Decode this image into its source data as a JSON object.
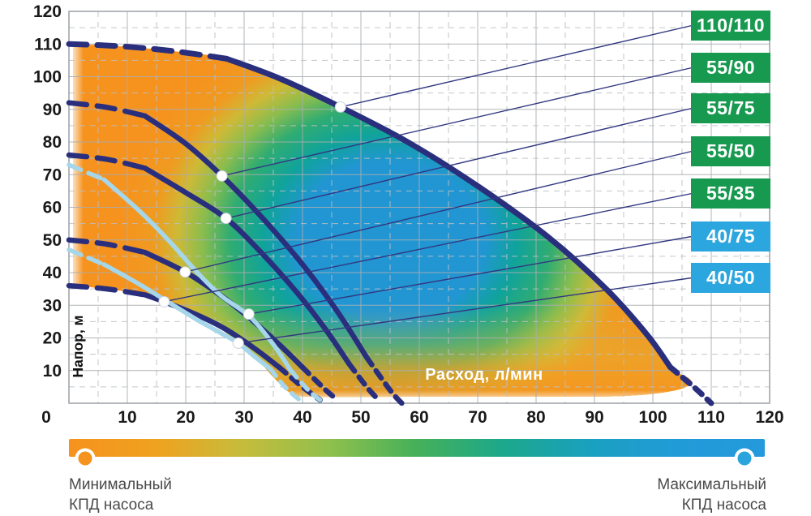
{
  "page": {
    "background": "#ffffff"
  },
  "chart_data": {
    "type": "line",
    "title": "",
    "xlabel": "Расход, л/мин",
    "ylabel": "Напор, м",
    "xlim": [
      0,
      120
    ],
    "ylim": [
      0,
      120
    ],
    "x_ticks": [
      0,
      10,
      20,
      30,
      40,
      50,
      60,
      70,
      80,
      90,
      100,
      110,
      120
    ],
    "y_ticks": [
      10,
      20,
      30,
      40,
      50,
      60,
      70,
      80,
      90,
      100,
      110,
      120
    ],
    "grid": {
      "solid_step": 10,
      "dashed_step": 5,
      "solid_color": "#a9adb1",
      "dashed_color": "#bcc0c4"
    },
    "series": [
      {
        "name": "110/110",
        "color": "#2A2F7D",
        "width": 7,
        "lead": 27,
        "tail": 103,
        "points": [
          [
            0,
            110
          ],
          [
            9,
            109.3
          ],
          [
            18,
            107.8
          ],
          [
            27,
            105.5
          ],
          [
            36,
            99.5
          ],
          [
            46.5,
            90.7
          ],
          [
            58,
            80
          ],
          [
            70,
            66.5
          ],
          [
            82,
            51
          ],
          [
            92,
            35
          ],
          [
            99,
            21
          ],
          [
            103,
            11
          ],
          [
            107,
            5
          ],
          [
            110,
            0
          ]
        ],
        "dot": [
          46.5,
          90.7
        ]
      },
      {
        "name": "55/90",
        "color": "#2A2F7D",
        "width": 6.5,
        "lead": 13,
        "tail": 51,
        "points": [
          [
            0,
            92
          ],
          [
            6.5,
            90.6
          ],
          [
            13,
            88
          ],
          [
            20,
            79.5
          ],
          [
            26.2,
            69.6
          ],
          [
            33,
            57
          ],
          [
            40,
            42.5
          ],
          [
            46,
            28
          ],
          [
            51,
            14
          ],
          [
            55,
            4
          ],
          [
            57,
            0
          ]
        ],
        "dot": [
          26.2,
          69.6
        ]
      },
      {
        "name": "55/75",
        "color": "#2A2F7D",
        "width": 6.5,
        "lead": 13,
        "tail": 48,
        "points": [
          [
            0,
            76
          ],
          [
            6.5,
            74.7
          ],
          [
            13,
            72
          ],
          [
            20,
            64.5
          ],
          [
            26.9,
            56.6
          ],
          [
            33,
            46
          ],
          [
            39,
            34
          ],
          [
            44,
            22.5
          ],
          [
            48,
            12
          ],
          [
            51,
            5
          ],
          [
            53,
            1
          ]
        ],
        "dot": [
          26.9,
          56.6
        ]
      },
      {
        "name": "55/50",
        "color": "#2A2F7D",
        "width": 6.5,
        "lead": 13,
        "tail": 40,
        "points": [
          [
            0,
            50
          ],
          [
            6.5,
            48.7
          ],
          [
            13,
            46.2
          ],
          [
            19.9,
            40.2
          ],
          [
            26,
            33
          ],
          [
            31,
            26
          ],
          [
            36,
            18
          ],
          [
            40,
            11
          ],
          [
            44,
            4
          ],
          [
            46,
            1
          ]
        ],
        "dot": [
          19.9,
          40.2
        ]
      },
      {
        "name": "55/35",
        "color": "#2A2F7D",
        "width": 6.5,
        "lead": 13,
        "tail": 36,
        "points": [
          [
            0,
            36
          ],
          [
            6.5,
            35
          ],
          [
            13,
            33.2
          ],
          [
            16.3,
            31.1
          ],
          [
            22,
            27
          ],
          [
            27,
            22.5
          ],
          [
            32,
            16.5
          ],
          [
            36,
            11
          ],
          [
            40,
            5
          ],
          [
            43,
            1
          ]
        ],
        "dot": [
          16.3,
          31.1
        ]
      },
      {
        "name": "40/75",
        "color": "#A5D6E9",
        "width": 5.5,
        "lead": 6,
        "tail": 38,
        "points": [
          [
            0,
            73
          ],
          [
            6,
            68.5
          ],
          [
            12,
            59
          ],
          [
            17,
            50
          ],
          [
            22,
            40
          ],
          [
            26,
            33
          ],
          [
            31,
            26.5
          ],
          [
            35,
            18
          ],
          [
            38,
            10
          ],
          [
            41,
            4
          ],
          [
            43,
            1
          ]
        ],
        "dot": [
          30.8,
          27.3
        ]
      },
      {
        "name": "40/50",
        "color": "#A5D6E9",
        "width": 5.5,
        "lead": 6,
        "tail": 34.5,
        "points": [
          [
            0,
            47
          ],
          [
            6,
            42.5
          ],
          [
            12,
            36.5
          ],
          [
            17,
            31
          ],
          [
            22,
            25.5
          ],
          [
            26,
            21.5
          ],
          [
            29,
            18.4
          ],
          [
            32,
            14
          ],
          [
            34.5,
            10.5
          ],
          [
            37,
            5
          ],
          [
            39.5,
            1
          ]
        ],
        "dot": [
          29,
          18.4
        ]
      }
    ],
    "efficiency_region": {
      "outline": [
        [
          0.7,
          36
        ],
        [
          6.5,
          35
        ],
        [
          13,
          33.2
        ],
        [
          16.3,
          31.1
        ],
        [
          22,
          27
        ],
        [
          25.5,
          23.5
        ],
        [
          29,
          18.4
        ],
        [
          32,
          14
        ],
        [
          35,
          8
        ],
        [
          38,
          3
        ],
        [
          41,
          2
        ],
        [
          60,
          2
        ],
        [
          80,
          2
        ],
        [
          95,
          2.2
        ],
        [
          104,
          4
        ],
        [
          106.5,
          7
        ],
        [
          103,
          11
        ],
        [
          99,
          21
        ],
        [
          92,
          35
        ],
        [
          82,
          51
        ],
        [
          70,
          66.5
        ],
        [
          58,
          80
        ],
        [
          46.5,
          90.7
        ],
        [
          36,
          99.5
        ],
        [
          27,
          105.5
        ],
        [
          18,
          107.8
        ],
        [
          9,
          109.3
        ],
        [
          0.7,
          110
        ]
      ],
      "best_efficiency_center": [
        55,
        50
      ],
      "colors": {
        "high": "#2196D3",
        "mid_teal": "#10A39B",
        "mid_green": "#2FAC72",
        "yellow": "#CDBA37",
        "low": "#F6921E"
      }
    }
  },
  "badges": [
    {
      "label": "110/110",
      "color": "#17994F"
    },
    {
      "label": "55/90",
      "color": "#17994F"
    },
    {
      "label": "55/75",
      "color": "#17994F"
    },
    {
      "label": "55/50",
      "color": "#17994F"
    },
    {
      "label": "55/35",
      "color": "#17994F"
    },
    {
      "label": "40/75",
      "color": "#2CA6DE"
    },
    {
      "label": "40/50",
      "color": "#2CA6DE"
    }
  ],
  "legend": {
    "min_line1": "Минимальный",
    "min_line2": "КПД насоса",
    "max_line1": "Максимальный",
    "max_line2": "КПД насоса",
    "min_color": "#F6921E",
    "max_color": "#2BA4DD",
    "gradient": [
      "#F6921E",
      "#EFA21F",
      "#C6BC3C",
      "#8FC04D",
      "#45B059",
      "#1CA88C",
      "#1AA0C0",
      "#219BD8",
      "#2499DB"
    ]
  },
  "colors": {
    "curve_navy": "#2A2F7D",
    "curve_light_blue": "#A5D6E9",
    "callout_line": "#323880",
    "tick_text": "#1a1a1a",
    "xlabel_text": "#ffffff",
    "plot_border": "#9ba1a6"
  }
}
